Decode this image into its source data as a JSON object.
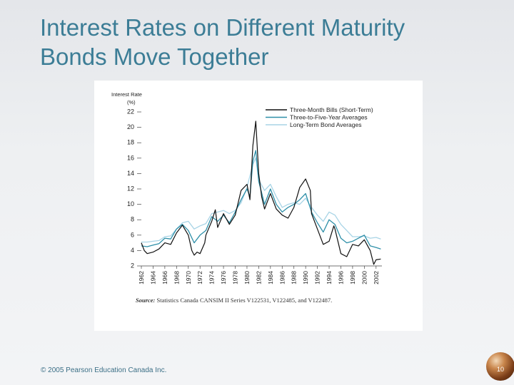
{
  "slide": {
    "title_line1": "Interest Rates on Different Maturity",
    "title_line2": "Bonds Move Together",
    "copyright": "© 2005 Pearson Education Canada Inc.",
    "page_number": "10",
    "title_color": "#3c7d96"
  },
  "chart_data": {
    "type": "line",
    "title": "",
    "ylabel": "Interest Rate",
    "ylabel_unit": "(%)",
    "xlabel": "",
    "ylim": [
      2,
      22
    ],
    "xlim": [
      1962,
      2003
    ],
    "yticks": [
      2,
      4,
      6,
      8,
      10,
      12,
      14,
      16,
      18,
      20,
      22
    ],
    "xticks": [
      "1962",
      "1964",
      "1966",
      "1968",
      "1970",
      "1972",
      "1974",
      "1976",
      "1978",
      "1980",
      "1982",
      "1984",
      "1986",
      "1988",
      "1990",
      "1992",
      "1994",
      "1996",
      "1998",
      "2000",
      "2002"
    ],
    "legend_position": "top-right",
    "grid": false,
    "source_label": "Source:",
    "source_text": "Statistics Canada CANSIM II Series V122531, V122485, and V122487.",
    "series": [
      {
        "name": "Three-Month Bills (Short-Term)",
        "color": "#111111",
        "points": [
          [
            1962,
            5.0
          ],
          [
            1962.5,
            4.0
          ],
          [
            1963,
            3.6
          ],
          [
            1964,
            3.8
          ],
          [
            1965,
            4.2
          ],
          [
            1966,
            5.0
          ],
          [
            1967,
            4.8
          ],
          [
            1968,
            6.3
          ],
          [
            1969,
            7.3
          ],
          [
            1970,
            6.0
          ],
          [
            1970.6,
            4.0
          ],
          [
            1971,
            3.4
          ],
          [
            1971.5,
            3.8
          ],
          [
            1972,
            3.6
          ],
          [
            1972.8,
            5.0
          ],
          [
            1973,
            6.0
          ],
          [
            1974,
            7.8
          ],
          [
            1974.6,
            9.3
          ],
          [
            1975,
            7.0
          ],
          [
            1976,
            8.8
          ],
          [
            1977,
            7.4
          ],
          [
            1978,
            8.6
          ],
          [
            1979,
            11.8
          ],
          [
            1980,
            12.6
          ],
          [
            1980.5,
            10.6
          ],
          [
            1981,
            17.6
          ],
          [
            1981.5,
            20.8
          ],
          [
            1982,
            14.0
          ],
          [
            1982.5,
            11.0
          ],
          [
            1983,
            9.4
          ],
          [
            1984,
            11.4
          ],
          [
            1985,
            9.4
          ],
          [
            1986,
            8.6
          ],
          [
            1987,
            8.2
          ],
          [
            1988,
            9.6
          ],
          [
            1989,
            12.2
          ],
          [
            1990,
            13.3
          ],
          [
            1990.8,
            11.8
          ],
          [
            1991,
            8.8
          ],
          [
            1992,
            6.8
          ],
          [
            1993,
            4.8
          ],
          [
            1994,
            5.2
          ],
          [
            1994.8,
            7.2
          ],
          [
            1995,
            6.8
          ],
          [
            1996,
            3.6
          ],
          [
            1997,
            3.2
          ],
          [
            1998,
            4.8
          ],
          [
            1999,
            4.6
          ],
          [
            2000,
            5.4
          ],
          [
            2001,
            4.0
          ],
          [
            2001.6,
            2.2
          ],
          [
            2002,
            2.8
          ],
          [
            2002.8,
            2.9
          ]
        ]
      },
      {
        "name": "Three-to-Five-Year Averages",
        "color": "#2e8fa8",
        "points": [
          [
            1962,
            4.6
          ],
          [
            1963,
            4.5
          ],
          [
            1964,
            4.7
          ],
          [
            1965,
            4.9
          ],
          [
            1966,
            5.6
          ],
          [
            1967,
            5.5
          ],
          [
            1968,
            6.8
          ],
          [
            1969,
            7.4
          ],
          [
            1970,
            6.6
          ],
          [
            1971,
            5.0
          ],
          [
            1972,
            6.0
          ],
          [
            1973,
            6.6
          ],
          [
            1974,
            8.4
          ],
          [
            1975,
            7.8
          ],
          [
            1976,
            8.6
          ],
          [
            1977,
            7.6
          ],
          [
            1978,
            9.0
          ],
          [
            1979,
            10.6
          ],
          [
            1980,
            12.0
          ],
          [
            1980.5,
            11.0
          ],
          [
            1981,
            15.6
          ],
          [
            1981.5,
            17.0
          ],
          [
            1982,
            13.0
          ],
          [
            1983,
            10.0
          ],
          [
            1984,
            12.0
          ],
          [
            1985,
            10.0
          ],
          [
            1986,
            9.0
          ],
          [
            1987,
            9.6
          ],
          [
            1988,
            10.0
          ],
          [
            1989,
            10.6
          ],
          [
            1990,
            11.4
          ],
          [
            1991,
            9.0
          ],
          [
            1992,
            7.6
          ],
          [
            1993,
            6.4
          ],
          [
            1994,
            8.0
          ],
          [
            1995,
            7.4
          ],
          [
            1996,
            5.6
          ],
          [
            1997,
            5.0
          ],
          [
            1998,
            5.2
          ],
          [
            1999,
            5.6
          ],
          [
            2000,
            6.0
          ],
          [
            2001,
            4.6
          ],
          [
            2002,
            4.4
          ],
          [
            2002.8,
            4.2
          ]
        ]
      },
      {
        "name": "Long-Term Bond Averages",
        "color": "#a8d4e6",
        "points": [
          [
            1962,
            5.1
          ],
          [
            1963,
            5.1
          ],
          [
            1964,
            5.2
          ],
          [
            1965,
            5.3
          ],
          [
            1966,
            5.8
          ],
          [
            1967,
            5.9
          ],
          [
            1968,
            6.8
          ],
          [
            1969,
            7.6
          ],
          [
            1970,
            7.8
          ],
          [
            1971,
            6.8
          ],
          [
            1972,
            7.2
          ],
          [
            1973,
            7.5
          ],
          [
            1974,
            8.8
          ],
          [
            1975,
            9.0
          ],
          [
            1976,
            9.2
          ],
          [
            1977,
            8.8
          ],
          [
            1978,
            9.2
          ],
          [
            1979,
            10.2
          ],
          [
            1980,
            12.2
          ],
          [
            1981,
            15.2
          ],
          [
            1981.5,
            16.0
          ],
          [
            1982,
            13.2
          ],
          [
            1983,
            11.8
          ],
          [
            1984,
            12.6
          ],
          [
            1985,
            11.0
          ],
          [
            1986,
            9.6
          ],
          [
            1987,
            10.0
          ],
          [
            1988,
            10.2
          ],
          [
            1989,
            10.0
          ],
          [
            1990,
            10.8
          ],
          [
            1991,
            9.6
          ],
          [
            1992,
            8.6
          ],
          [
            1993,
            7.8
          ],
          [
            1994,
            9.0
          ],
          [
            1995,
            8.6
          ],
          [
            1996,
            7.4
          ],
          [
            1997,
            6.6
          ],
          [
            1998,
            5.8
          ],
          [
            1999,
            5.8
          ],
          [
            2000,
            5.9
          ],
          [
            2001,
            5.6
          ],
          [
            2002,
            5.7
          ],
          [
            2002.8,
            5.5
          ]
        ]
      }
    ]
  }
}
